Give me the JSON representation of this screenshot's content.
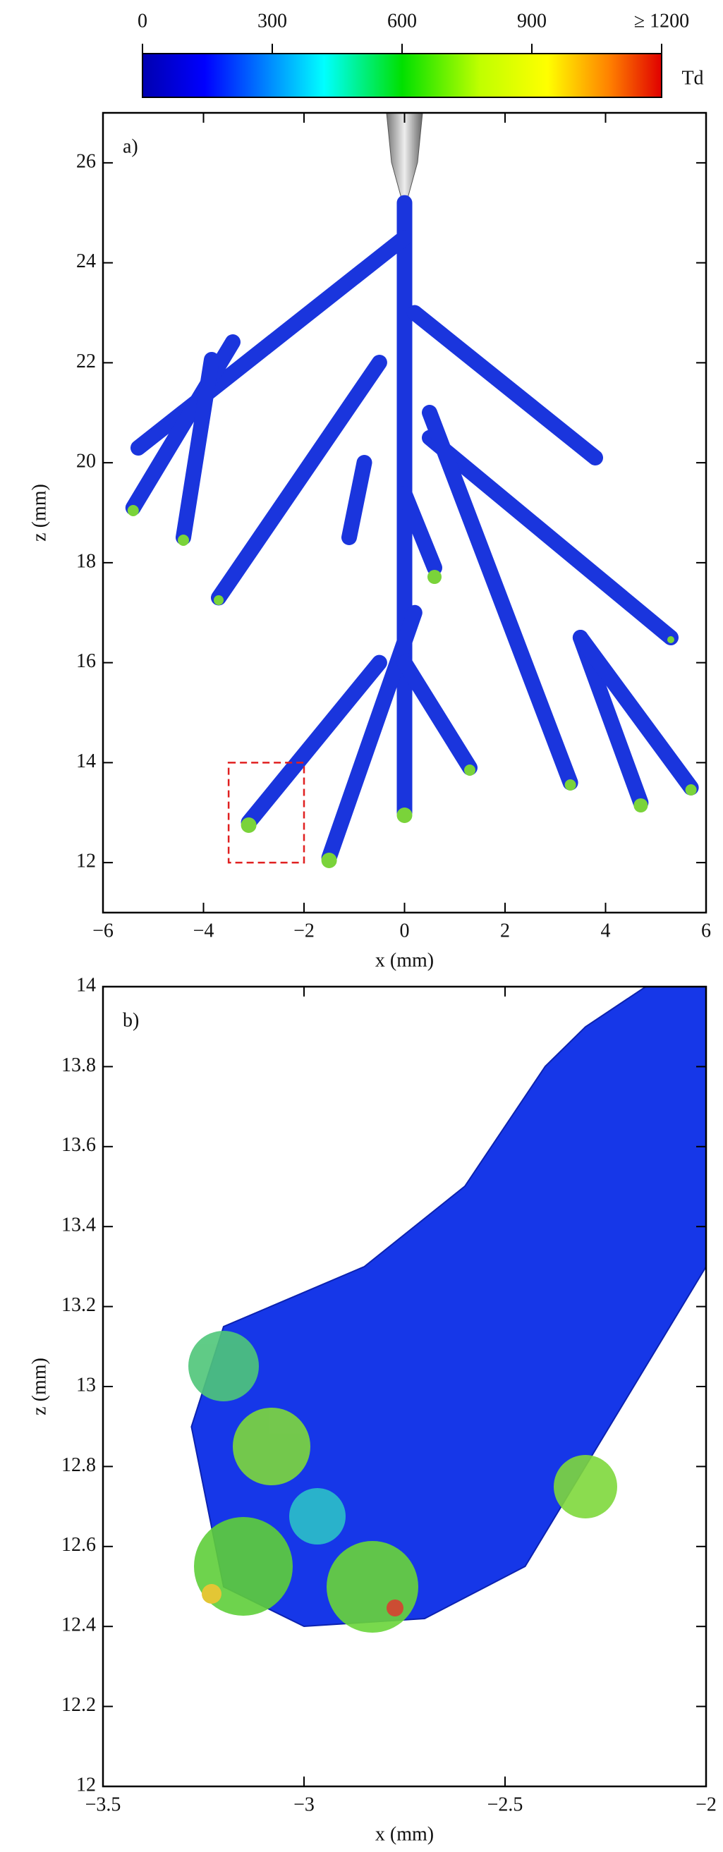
{
  "chart_data": [
    {
      "type": "colorbar",
      "label": "Td",
      "xlim": [
        0,
        1200
      ],
      "xticks": [
        0,
        300,
        600,
        900,
        {
          "value": 1200,
          "label": "≥ 1200"
        }
      ]
    },
    {
      "type": "image",
      "annotation": "a)",
      "xlabel": "x (mm)",
      "ylabel": "z (mm)",
      "xlim": [
        -6,
        6
      ],
      "ylim": [
        11,
        27
      ],
      "xticks": [
        {
          "value": -6,
          "label": "−6"
        },
        {
          "value": -4,
          "label": "−4"
        },
        {
          "value": -2,
          "label": "−2"
        },
        0,
        2,
        4,
        6
      ],
      "yticks": [
        12,
        14,
        16,
        18,
        20,
        22,
        24,
        26
      ],
      "highlight": {
        "x": [
          -3.5,
          -2
        ],
        "z": [
          12,
          14
        ],
        "color": "#e02020"
      }
    },
    {
      "type": "image",
      "annotation": "b)",
      "xlabel": "x (mm)",
      "ylabel": "z (mm)",
      "xlim": [
        -3.5,
        -2
      ],
      "ylim": [
        12,
        14
      ],
      "xticks": [
        {
          "value": -3.5,
          "label": "−3.5"
        },
        {
          "value": -3,
          "label": "−3"
        },
        {
          "value": -2.5,
          "label": "−2.5"
        },
        {
          "value": -2,
          "label": "−2"
        }
      ],
      "yticks": [
        12,
        12.2,
        12.4,
        12.6,
        12.8,
        13,
        13.2,
        13.4,
        13.6,
        13.8,
        14
      ]
    }
  ]
}
